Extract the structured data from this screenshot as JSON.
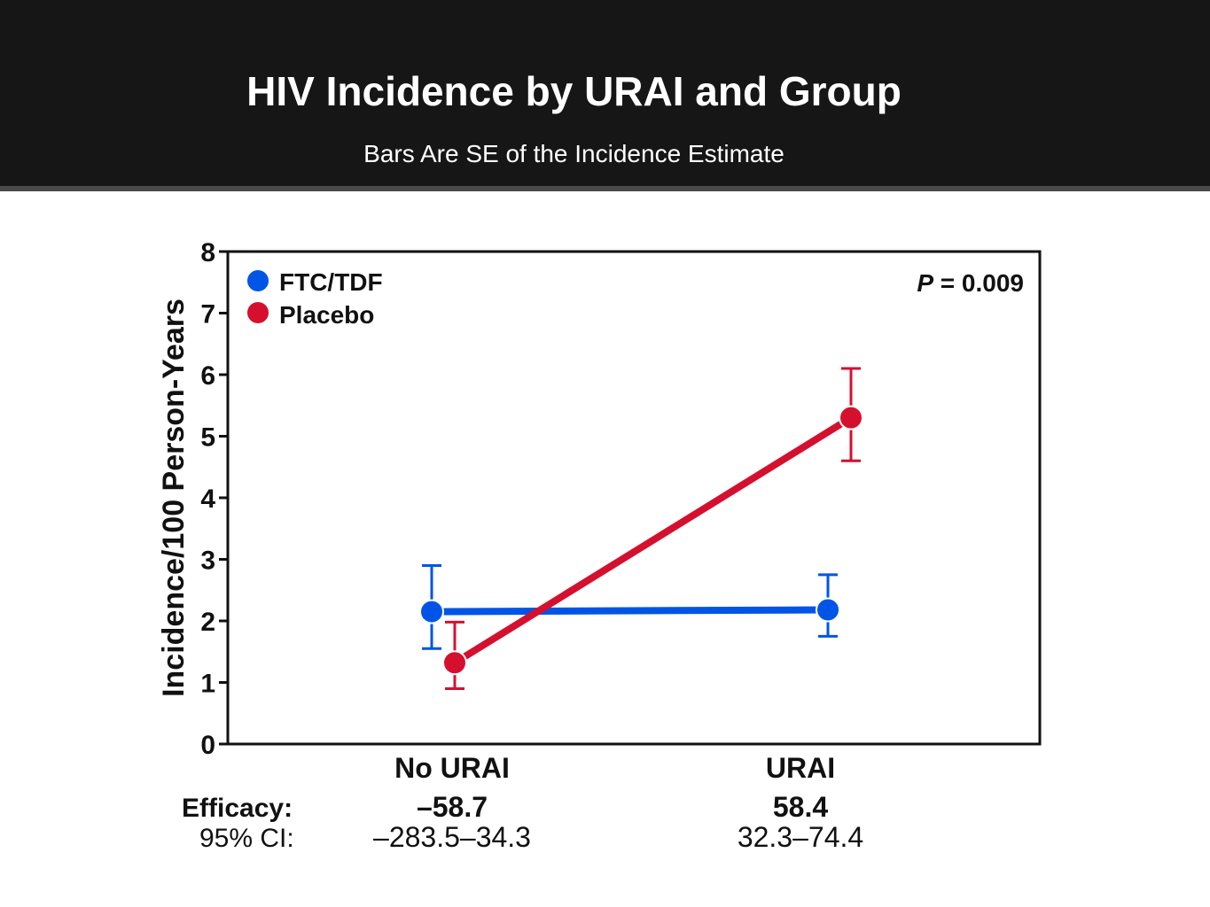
{
  "slide": {
    "title": "HIV Incidence by URAI and Group",
    "subtitle": "Bars Are SE of the Incidence Estimate"
  },
  "colors": {
    "header_bg": "#161616",
    "ftc_tdf": "#0055e6",
    "placebo": "#d5102f"
  },
  "chart_data": {
    "type": "line",
    "categories": [
      "No URAI",
      "URAI"
    ],
    "ylabel": "Incidence/100 Person-Years",
    "xlabel": "",
    "ylim": [
      0,
      8
    ],
    "yticks": [
      "0",
      "1",
      "2",
      "3",
      "4",
      "5",
      "6",
      "7",
      "8"
    ],
    "grid": false,
    "legend_position": "top-left",
    "annotation": {
      "prefix": "P",
      "text": " = 0.009"
    },
    "series": [
      {
        "name": "FTC/TDF",
        "color": "#0055e6",
        "values": [
          2.15,
          2.18
        ],
        "se_lower": [
          1.55,
          1.75
        ],
        "se_upper": [
          2.9,
          2.75
        ]
      },
      {
        "name": "Placebo",
        "color": "#d5102f",
        "values": [
          1.32,
          5.3
        ],
        "se_lower": [
          0.9,
          4.6
        ],
        "se_upper": [
          1.98,
          6.1
        ]
      }
    ],
    "efficacy": {
      "label": "Efficacy:",
      "ci_label": "95% CI:",
      "values": [
        "–58.7",
        "58.4"
      ],
      "ci": [
        "–283.5–34.3",
        "32.3–74.4"
      ]
    }
  }
}
